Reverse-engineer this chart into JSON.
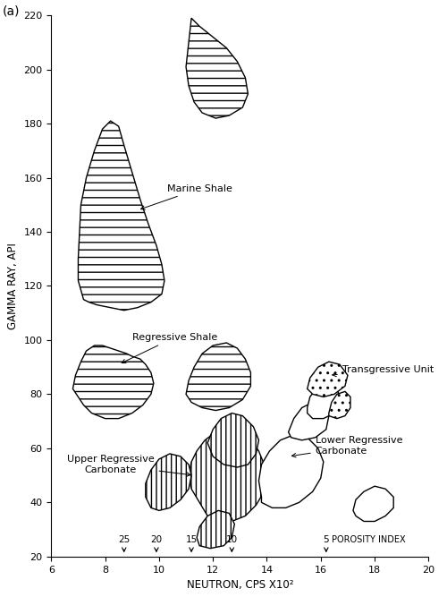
{
  "title_label": "(a)",
  "xlabel": "NEUTRON, CPS X10²",
  "ylabel": "GAMMA RAY, API",
  "xlim": [
    6,
    20
  ],
  "ylim": [
    20,
    220
  ],
  "xticks": [
    6,
    8,
    10,
    12,
    14,
    16,
    18,
    20
  ],
  "yticks": [
    20,
    40,
    60,
    80,
    100,
    120,
    140,
    160,
    180,
    200,
    220
  ],
  "porosity_ticks": {
    "25": 8.7,
    "20": 9.9,
    "15": 11.2,
    "10": 12.7,
    "5": 16.2
  },
  "background_color": "#ffffff",
  "marine_shale": [
    [
      7.2,
      115
    ],
    [
      7.0,
      122
    ],
    [
      7.0,
      130
    ],
    [
      7.05,
      140
    ],
    [
      7.1,
      150
    ],
    [
      7.3,
      160
    ],
    [
      7.6,
      170
    ],
    [
      7.9,
      178
    ],
    [
      8.2,
      181
    ],
    [
      8.5,
      179
    ],
    [
      8.7,
      172
    ],
    [
      9.0,
      162
    ],
    [
      9.3,
      152
    ],
    [
      9.6,
      143
    ],
    [
      9.9,
      135
    ],
    [
      10.1,
      128
    ],
    [
      10.2,
      122
    ],
    [
      10.1,
      117
    ],
    [
      9.7,
      114
    ],
    [
      9.2,
      112
    ],
    [
      8.7,
      111
    ],
    [
      8.2,
      112
    ],
    [
      7.7,
      113
    ],
    [
      7.4,
      114
    ],
    [
      7.2,
      115
    ]
  ],
  "upper_marine_blob": [
    [
      11.2,
      219
    ],
    [
      11.5,
      216
    ],
    [
      12.0,
      212
    ],
    [
      12.5,
      208
    ],
    [
      12.9,
      203
    ],
    [
      13.2,
      197
    ],
    [
      13.3,
      191
    ],
    [
      13.1,
      186
    ],
    [
      12.6,
      183
    ],
    [
      12.1,
      182
    ],
    [
      11.6,
      184
    ],
    [
      11.3,
      188
    ],
    [
      11.1,
      194
    ],
    [
      11.0,
      201
    ],
    [
      11.1,
      210
    ],
    [
      11.2,
      219
    ]
  ],
  "regressive_shale": [
    [
      6.8,
      82
    ],
    [
      6.9,
      87
    ],
    [
      7.1,
      92
    ],
    [
      7.3,
      96
    ],
    [
      7.6,
      98
    ],
    [
      7.9,
      98
    ],
    [
      8.2,
      97
    ],
    [
      8.5,
      96
    ],
    [
      8.8,
      95
    ],
    [
      9.0,
      94
    ],
    [
      9.3,
      93
    ],
    [
      9.5,
      91
    ],
    [
      9.7,
      88
    ],
    [
      9.8,
      84
    ],
    [
      9.7,
      80
    ],
    [
      9.4,
      76
    ],
    [
      9.0,
      73
    ],
    [
      8.5,
      71
    ],
    [
      8.0,
      71
    ],
    [
      7.5,
      73
    ],
    [
      7.2,
      76
    ],
    [
      7.0,
      79
    ],
    [
      6.8,
      82
    ]
  ],
  "mid_marine_blob": [
    [
      11.0,
      80
    ],
    [
      11.1,
      85
    ],
    [
      11.3,
      90
    ],
    [
      11.6,
      95
    ],
    [
      12.0,
      98
    ],
    [
      12.5,
      99
    ],
    [
      12.9,
      97
    ],
    [
      13.2,
      93
    ],
    [
      13.4,
      88
    ],
    [
      13.4,
      83
    ],
    [
      13.1,
      78
    ],
    [
      12.6,
      75
    ],
    [
      12.1,
      74
    ],
    [
      11.6,
      75
    ],
    [
      11.2,
      77
    ],
    [
      11.0,
      80
    ]
  ],
  "urc_main": [
    [
      11.8,
      35
    ],
    [
      11.5,
      40
    ],
    [
      11.2,
      45
    ],
    [
      11.1,
      50
    ],
    [
      11.2,
      55
    ],
    [
      11.4,
      59
    ],
    [
      11.7,
      63
    ],
    [
      12.1,
      66
    ],
    [
      12.5,
      67
    ],
    [
      13.0,
      66
    ],
    [
      13.4,
      63
    ],
    [
      13.7,
      59
    ],
    [
      13.9,
      54
    ],
    [
      14.0,
      49
    ],
    [
      13.9,
      44
    ],
    [
      13.6,
      39
    ],
    [
      13.2,
      35
    ],
    [
      12.7,
      33
    ],
    [
      12.2,
      33
    ],
    [
      11.8,
      35
    ]
  ],
  "urc_left_arm": [
    [
      9.5,
      42
    ],
    [
      9.5,
      47
    ],
    [
      9.7,
      52
    ],
    [
      10.0,
      56
    ],
    [
      10.4,
      58
    ],
    [
      10.8,
      57
    ],
    [
      11.1,
      54
    ],
    [
      11.2,
      50
    ],
    [
      11.1,
      45
    ],
    [
      10.8,
      41
    ],
    [
      10.4,
      38
    ],
    [
      10.0,
      37
    ],
    [
      9.7,
      38
    ],
    [
      9.5,
      42
    ]
  ],
  "urc_bottom_blob": [
    [
      11.4,
      27
    ],
    [
      11.5,
      31
    ],
    [
      11.8,
      35
    ],
    [
      12.2,
      37
    ],
    [
      12.6,
      36
    ],
    [
      12.8,
      32
    ],
    [
      12.7,
      27
    ],
    [
      12.4,
      24
    ],
    [
      11.9,
      23
    ],
    [
      11.5,
      24
    ],
    [
      11.4,
      27
    ]
  ],
  "urc_mid_upper": [
    [
      11.8,
      62
    ],
    [
      12.0,
      67
    ],
    [
      12.3,
      71
    ],
    [
      12.7,
      73
    ],
    [
      13.1,
      72
    ],
    [
      13.5,
      68
    ],
    [
      13.7,
      63
    ],
    [
      13.6,
      58
    ],
    [
      13.3,
      54
    ],
    [
      12.9,
      53
    ],
    [
      12.4,
      54
    ],
    [
      12.0,
      57
    ],
    [
      11.8,
      62
    ]
  ],
  "lrc_main": [
    [
      13.8,
      42
    ],
    [
      13.7,
      48
    ],
    [
      13.8,
      54
    ],
    [
      14.1,
      59
    ],
    [
      14.5,
      63
    ],
    [
      15.0,
      65
    ],
    [
      15.5,
      64
    ],
    [
      15.9,
      60
    ],
    [
      16.1,
      55
    ],
    [
      16.0,
      49
    ],
    [
      15.7,
      44
    ],
    [
      15.2,
      40
    ],
    [
      14.7,
      38
    ],
    [
      14.2,
      38
    ],
    [
      13.8,
      40
    ],
    [
      13.8,
      42
    ]
  ],
  "lrc_small_upper": [
    [
      14.8,
      66
    ],
    [
      15.0,
      71
    ],
    [
      15.3,
      75
    ],
    [
      15.7,
      77
    ],
    [
      16.1,
      76
    ],
    [
      16.3,
      72
    ],
    [
      16.2,
      67
    ],
    [
      15.8,
      64
    ],
    [
      15.3,
      63
    ],
    [
      14.9,
      64
    ],
    [
      14.8,
      66
    ]
  ],
  "lrc_small_upper2": [
    [
      15.5,
      75
    ],
    [
      15.6,
      79
    ],
    [
      15.9,
      83
    ],
    [
      16.3,
      85
    ],
    [
      16.6,
      83
    ],
    [
      16.7,
      78
    ],
    [
      16.5,
      73
    ],
    [
      16.1,
      71
    ],
    [
      15.7,
      71
    ],
    [
      15.5,
      73
    ],
    [
      15.5,
      75
    ]
  ],
  "lrc_right_slim": [
    [
      17.2,
      37
    ],
    [
      17.3,
      41
    ],
    [
      17.6,
      44
    ],
    [
      18.0,
      46
    ],
    [
      18.4,
      45
    ],
    [
      18.7,
      42
    ],
    [
      18.7,
      38
    ],
    [
      18.4,
      35
    ],
    [
      18.0,
      33
    ],
    [
      17.6,
      33
    ],
    [
      17.3,
      35
    ],
    [
      17.2,
      37
    ]
  ],
  "transgressive_unit": [
    [
      15.5,
      82
    ],
    [
      15.6,
      86
    ],
    [
      15.9,
      90
    ],
    [
      16.3,
      92
    ],
    [
      16.7,
      91
    ],
    [
      17.0,
      87
    ],
    [
      16.9,
      83
    ],
    [
      16.5,
      80
    ],
    [
      16.1,
      79
    ],
    [
      15.7,
      80
    ],
    [
      15.5,
      82
    ]
  ],
  "trans_small": [
    [
      16.3,
      73
    ],
    [
      16.4,
      77
    ],
    [
      16.6,
      80
    ],
    [
      16.9,
      81
    ],
    [
      17.1,
      79
    ],
    [
      17.1,
      75
    ],
    [
      16.9,
      72
    ],
    [
      16.6,
      71
    ],
    [
      16.3,
      72
    ],
    [
      16.3,
      73
    ]
  ]
}
